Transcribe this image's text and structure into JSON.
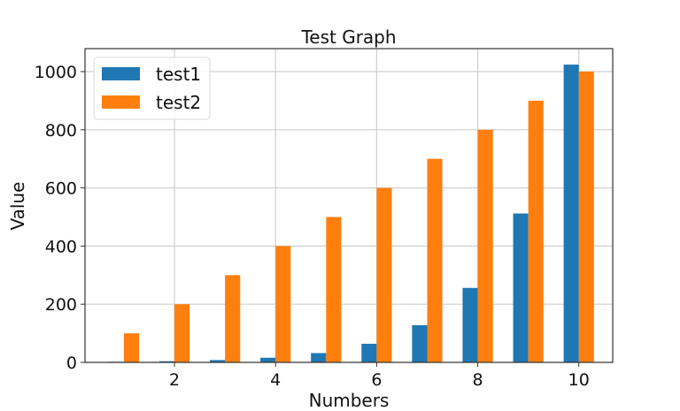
{
  "chart_data": {
    "type": "bar",
    "title": "Test Graph",
    "xlabel": "Numbers",
    "ylabel": "Value",
    "x": [
      1,
      2,
      3,
      4,
      5,
      6,
      7,
      8,
      9,
      10
    ],
    "series": [
      {
        "name": "test1",
        "color": "#1f77b4",
        "values": [
          2,
          4,
          8,
          16,
          32,
          64,
          128,
          256,
          512,
          1024
        ],
        "offset": -0.3
      },
      {
        "name": "test2",
        "color": "#ff7f0e",
        "values": [
          100,
          200,
          300,
          400,
          500,
          600,
          700,
          800,
          900,
          1000
        ],
        "offset": 0
      }
    ],
    "bar_width": 0.3,
    "xlim": [
      0.23,
      10.67
    ],
    "ylim": [
      0,
      1079
    ],
    "xticks": [
      2,
      4,
      6,
      8,
      10
    ],
    "yticks": [
      0,
      200,
      400,
      600,
      800,
      1000
    ],
    "grid": true,
    "legend_position": "upper left"
  }
}
